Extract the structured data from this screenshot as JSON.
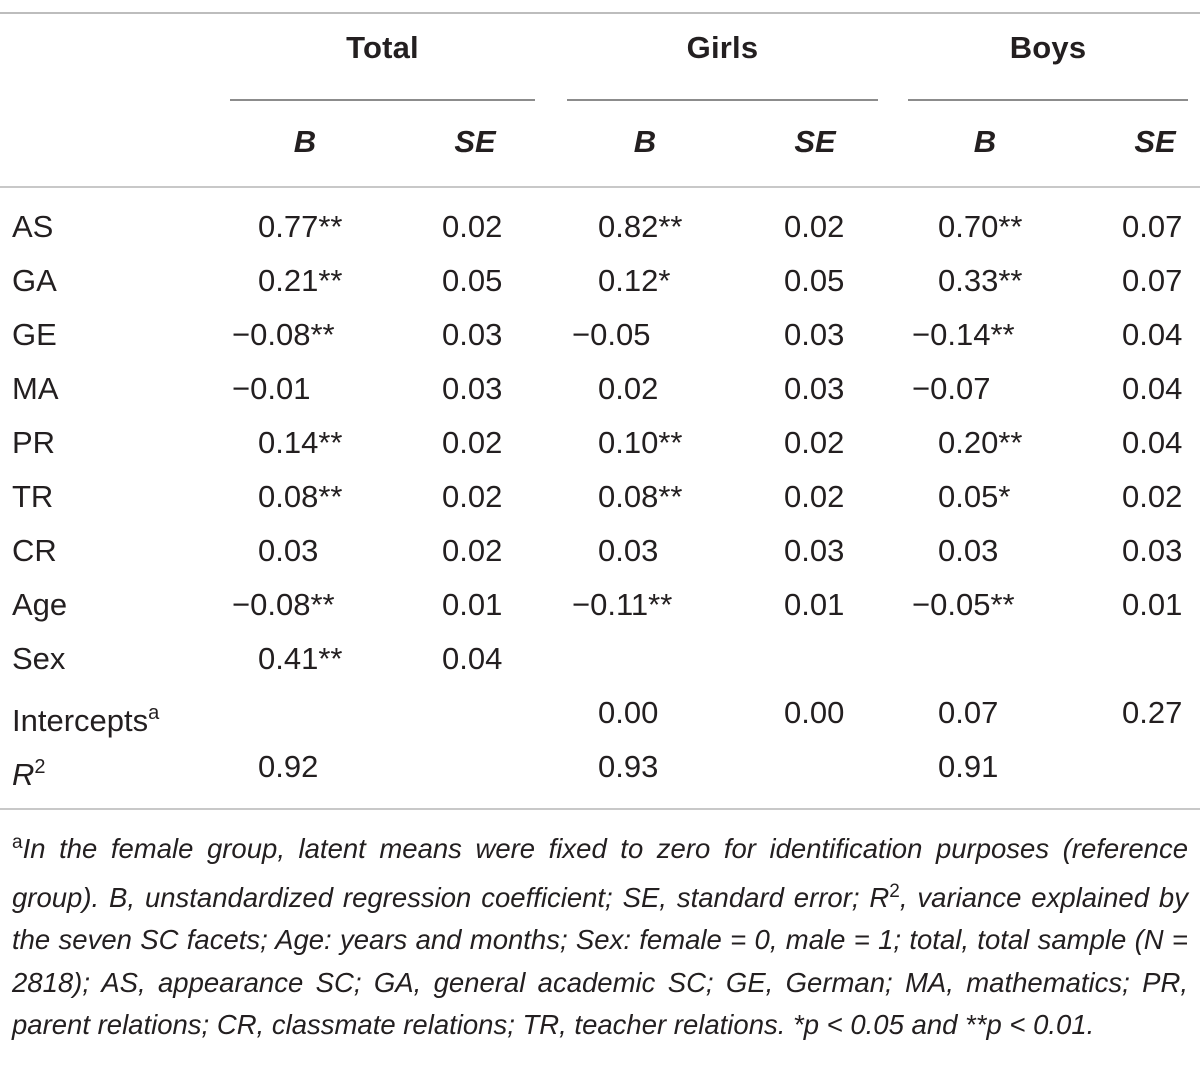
{
  "groups": [
    {
      "title": "Total"
    },
    {
      "title": "Girls"
    },
    {
      "title": "Boys"
    }
  ],
  "col_headers": {
    "b": "B",
    "se": "SE"
  },
  "rows": [
    {
      "label": "AS",
      "cells": [
        "0.77**",
        "0.02",
        "0.82**",
        "0.02",
        "0.70**",
        "0.07"
      ]
    },
    {
      "label": "GA",
      "cells": [
        "0.21**",
        "0.05",
        "0.12*",
        "0.05",
        "0.33**",
        "0.07"
      ]
    },
    {
      "label": "GE",
      "cells": [
        "−0.08**",
        "0.03",
        "−0.05",
        "0.03",
        "−0.14**",
        "0.04"
      ]
    },
    {
      "label": "MA",
      "cells": [
        "−0.01",
        "0.03",
        "0.02",
        "0.03",
        "−0.07",
        "0.04"
      ]
    },
    {
      "label": "PR",
      "cells": [
        "0.14**",
        "0.02",
        "0.10**",
        "0.02",
        "0.20**",
        "0.04"
      ]
    },
    {
      "label": "TR",
      "cells": [
        "0.08**",
        "0.02",
        "0.08**",
        "0.02",
        "0.05*",
        "0.02"
      ]
    },
    {
      "label": "CR",
      "cells": [
        "0.03",
        "0.02",
        "0.03",
        "0.03",
        "0.03",
        "0.03"
      ]
    },
    {
      "label": "Age",
      "cells": [
        "−0.08**",
        "0.01",
        "−0.11**",
        "0.01",
        "−0.05**",
        "0.01"
      ]
    },
    {
      "label": "Sex",
      "cells": [
        "0.41**",
        "0.04",
        "",
        "",
        "",
        ""
      ]
    },
    {
      "label": "Intercepts",
      "label_sup": "a",
      "cells": [
        "",
        "",
        "0.00",
        "0.00",
        "0.07",
        "0.27"
      ]
    },
    {
      "label": "R",
      "label_sup": "2",
      "label_italic": true,
      "cells": [
        "0.92",
        "",
        "0.93",
        "",
        "0.91",
        ""
      ]
    }
  ],
  "footnote": {
    "marker": "a",
    "part1": "In the female group, latent means were fixed to zero for identification purposes (reference group). B, unstandardized regression coefficient; SE, standard error; R",
    "sup2": "2",
    "part2": ", variance explained by the seven SC facets; Age: years and months; Sex: female = 0, male = 1; total, total sample (N = 2818); AS, appearance SC; GA, general academic SC; GE, German; MA, mathematics; PR, parent relations; CR, classmate relations; TR, teacher relations. *p < 0.05 and **p < 0.01."
  }
}
